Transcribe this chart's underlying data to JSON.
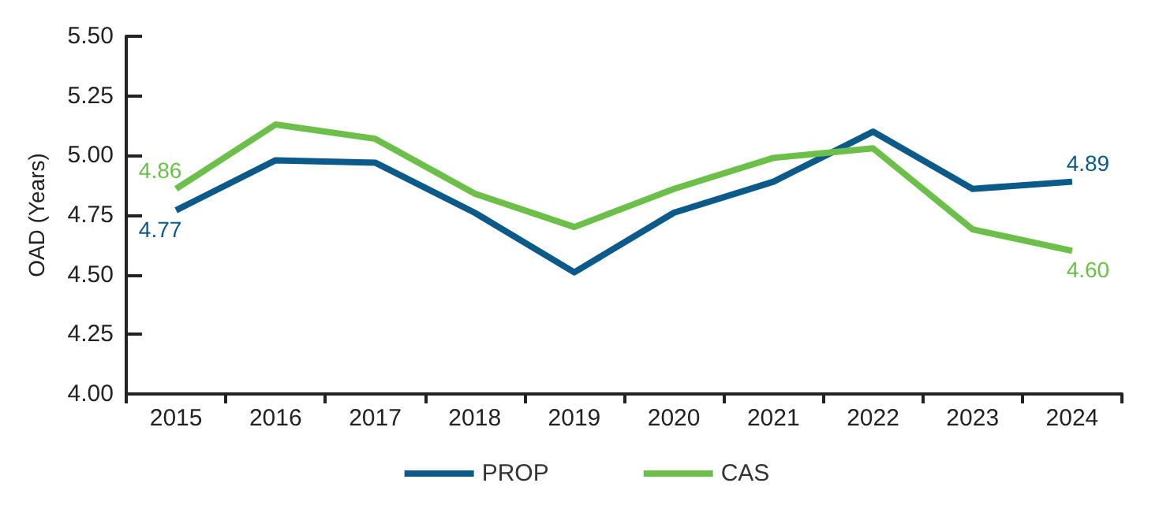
{
  "chart_data": {
    "type": "line",
    "ylabel": "OAD (Years)",
    "categories": [
      "2015",
      "2016",
      "2017",
      "2018",
      "2019",
      "2020",
      "2021",
      "2022",
      "2023",
      "2024"
    ],
    "series": [
      {
        "name": "PROP",
        "color": "#0b5a8a",
        "values": [
          4.77,
          4.98,
          4.97,
          4.76,
          4.51,
          4.76,
          4.89,
          5.1,
          4.86,
          4.89
        ],
        "value_labels": [
          "4.77",
          null,
          null,
          null,
          null,
          null,
          null,
          null,
          null,
          "4.89"
        ]
      },
      {
        "name": "CAS",
        "color": "#6cc04a",
        "values": [
          4.86,
          5.13,
          5.07,
          4.84,
          4.7,
          4.86,
          4.99,
          5.03,
          4.69,
          4.6
        ],
        "value_labels": [
          "4.86",
          null,
          null,
          null,
          null,
          null,
          null,
          null,
          null,
          "4.60"
        ]
      }
    ],
    "ylim": [
      4.0,
      5.5
    ],
    "yticks": [
      {
        "value": 4.0,
        "label": "4.00"
      },
      {
        "value": 4.25,
        "label": "4.25"
      },
      {
        "value": 4.5,
        "label": "4.50"
      },
      {
        "value": 4.75,
        "label": "4.75"
      },
      {
        "value": 5.0,
        "label": "5.00"
      },
      {
        "value": 5.25,
        "label": "5.25"
      },
      {
        "value": 5.5,
        "label": "5.50"
      }
    ],
    "grid": false,
    "legend": "bottom",
    "marker": "none",
    "line_style": "solid"
  }
}
